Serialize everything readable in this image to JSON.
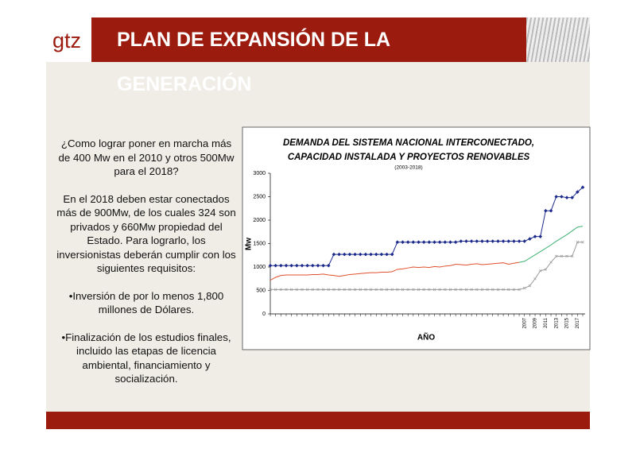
{
  "header": {
    "logo": "gtz",
    "title": "PLAN DE EXPANSIÓN DE LA GENERACIÓN"
  },
  "paragraphs": [
    "¿Como lograr poner en marcha más de 400 Mw en el 2010 y otros 500Mw para el 2018?",
    "En el 2018 deben estar conectados más de 900Mw, de los cuales 324 son privados y 660Mw propiedad del Estado. Para lograrlo, los inversionistas deberán cumplir con los siguientes requisitos:",
    "•Inversión de por lo menos 1,800 millones de Dólares.",
    "•Finalización de los estudios finales, incluido las etapas de licencia ambiental, financiamiento y socialización."
  ],
  "chart_data": {
    "type": "line",
    "title": "DEMANDA DEL SISTEMA NACIONAL INTERCONECTADO,",
    "title2": "CAPACIDAD INSTALADA Y PROYECTOS RENOVABLES",
    "subtitle": "(2003-2018)",
    "x_label": "AÑO",
    "y_label": "Mw",
    "categories": [
      null,
      null,
      null,
      null,
      null,
      null,
      null,
      null,
      null,
      null,
      null,
      null,
      null,
      null,
      null,
      null,
      null,
      null,
      null,
      null,
      null,
      null,
      null,
      null,
      null,
      null,
      null,
      null,
      null,
      null,
      null,
      null,
      null,
      null,
      null,
      null,
      null,
      null,
      null,
      null,
      null,
      null,
      null,
      null,
      null,
      null,
      null,
      null,
      "2007",
      null,
      "2009",
      null,
      "2011",
      null,
      "2013",
      null,
      "2015",
      null,
      "2017",
      null
    ],
    "ylim": [
      0,
      3000
    ],
    "yticks": [
      0,
      500,
      1000,
      1500,
      2000,
      2500,
      3000
    ],
    "series": [
      {
        "color": "#1c2a8c",
        "marker": "diamond",
        "values": [
          1030,
          1030,
          1030,
          1030,
          1030,
          1030,
          1030,
          1030,
          1030,
          1030,
          1030,
          1030,
          1270,
          1270,
          1270,
          1270,
          1270,
          1270,
          1270,
          1270,
          1270,
          1270,
          1270,
          1270,
          1530,
          1530,
          1530,
          1530,
          1530,
          1530,
          1530,
          1530,
          1530,
          1530,
          1530,
          1530,
          1550,
          1550,
          1550,
          1550,
          1550,
          1550,
          1550,
          1550,
          1550,
          1550,
          1550,
          1550,
          1550,
          1600,
          1650,
          1650,
          2200,
          2200,
          2500,
          2500,
          2480,
          2480,
          2600,
          2700
        ]
      },
      {
        "color": "#e0502e",
        "marker": "none",
        "values": [
          720,
          780,
          820,
          830,
          830,
          830,
          830,
          830,
          840,
          840,
          850,
          830,
          820,
          800,
          820,
          840,
          850,
          860,
          870,
          880,
          880,
          890,
          890,
          900,
          950,
          960,
          980,
          1000,
          990,
          1000,
          990,
          1010,
          1000,
          1020,
          1030,
          1060,
          1050,
          1040,
          1060,
          1070,
          1050,
          1060,
          1070,
          1080,
          1090,
          1060,
          1080,
          1100,
          null,
          null,
          null,
          null,
          null,
          null,
          null,
          null,
          null,
          null,
          null,
          null
        ]
      },
      {
        "color": "#3cb371",
        "marker": "none",
        "values": [
          null,
          null,
          null,
          null,
          null,
          null,
          null,
          null,
          null,
          null,
          null,
          null,
          null,
          null,
          null,
          null,
          null,
          null,
          null,
          null,
          null,
          null,
          null,
          null,
          null,
          null,
          null,
          null,
          null,
          null,
          null,
          null,
          null,
          null,
          null,
          null,
          null,
          null,
          null,
          null,
          null,
          null,
          null,
          null,
          null,
          null,
          null,
          1100,
          1120,
          1190,
          1260,
          1330,
          1400,
          1470,
          1550,
          1620,
          1690,
          1770,
          1850,
          1870
        ]
      },
      {
        "color": "#9a9a9a",
        "marker": "cross",
        "values": [
          520,
          520,
          520,
          520,
          520,
          520,
          520,
          520,
          520,
          520,
          520,
          520,
          520,
          520,
          520,
          520,
          520,
          520,
          520,
          520,
          520,
          520,
          520,
          520,
          520,
          520,
          520,
          520,
          520,
          520,
          520,
          520,
          520,
          520,
          520,
          520,
          520,
          520,
          520,
          520,
          520,
          520,
          520,
          520,
          520,
          520,
          520,
          520,
          550,
          600,
          750,
          920,
          950,
          1100,
          1230,
          1230,
          1230,
          1230,
          1530,
          1530
        ]
      }
    ]
  }
}
